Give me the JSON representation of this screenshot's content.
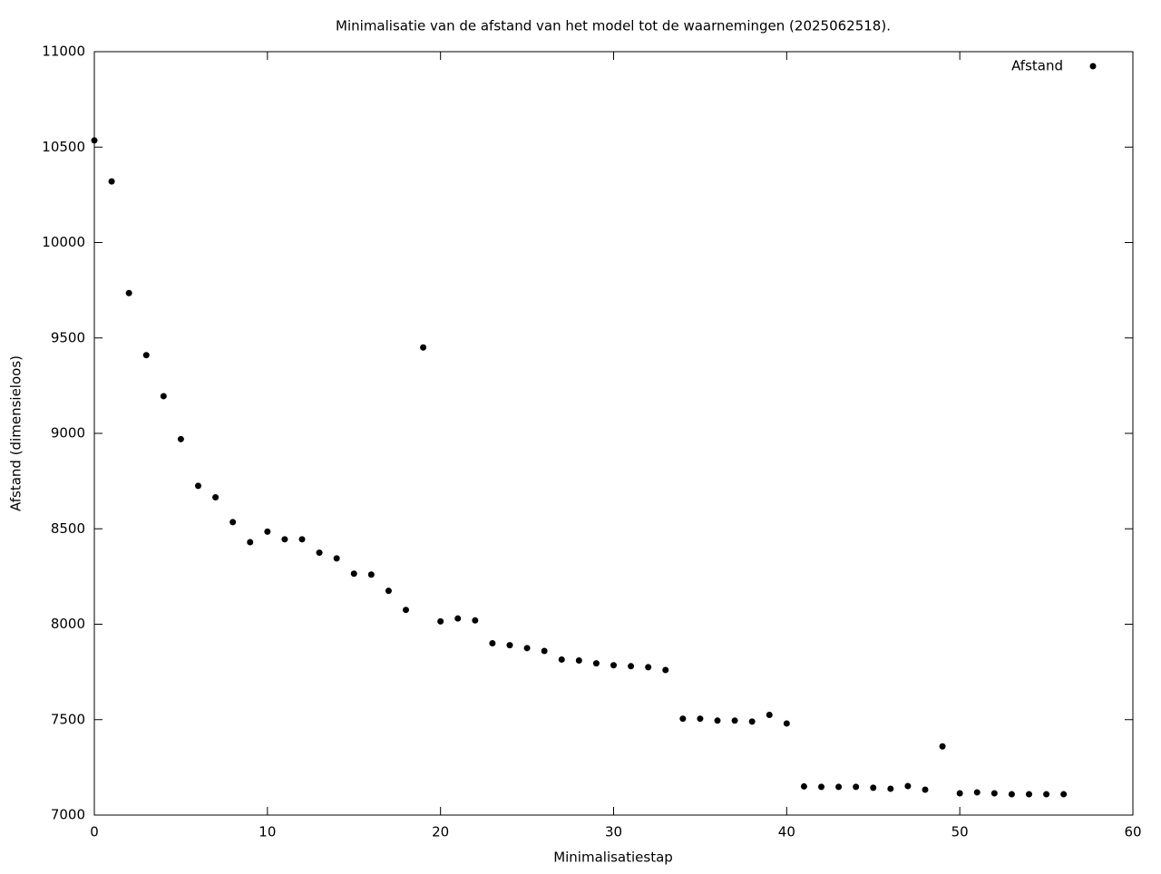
{
  "chart_data": {
    "type": "scatter",
    "title": "Minimalisatie van de afstand van het model tot de waarnemingen (2025062518).",
    "x_label": "Minimalisatiestap",
    "y_label": "Afstand (dimensieloos)",
    "legend": "top-right",
    "grid": false,
    "xlim": [
      0,
      60
    ],
    "xticks": [
      0,
      10,
      20,
      30,
      40,
      50,
      60
    ],
    "ylim": [
      7000,
      11000
    ],
    "yticks": [
      7000,
      7500,
      8000,
      8500,
      9000,
      9500,
      10000,
      10500,
      11000
    ],
    "series": [
      {
        "name": "Afstand",
        "color": "#000000",
        "x": [
          0,
          1,
          2,
          3,
          4,
          5,
          6,
          7,
          8,
          9,
          10,
          11,
          12,
          13,
          14,
          15,
          16,
          17,
          18,
          19,
          20,
          21,
          22,
          23,
          24,
          25,
          26,
          27,
          28,
          29,
          30,
          31,
          32,
          33,
          34,
          35,
          36,
          37,
          38,
          39,
          40,
          41,
          42,
          43,
          44,
          45,
          46,
          47,
          48,
          49,
          50,
          51,
          52,
          53,
          54,
          55,
          56
        ],
        "values": [
          10535,
          10320,
          9735,
          9410,
          9195,
          8970,
          8725,
          8665,
          8535,
          8430,
          8485,
          8445,
          8445,
          8375,
          8345,
          8265,
          8260,
          8175,
          8075,
          9450,
          8015,
          8030,
          8020,
          7900,
          7890,
          7875,
          7860,
          7815,
          7810,
          7795,
          7785,
          7780,
          7775,
          7760,
          7505,
          7505,
          7495,
          7495,
          7490,
          7525,
          7480,
          7150,
          7148,
          7148,
          7148,
          7143,
          7138,
          7152,
          7133,
          7360,
          7114,
          7119,
          7114,
          7109,
          7109,
          7109,
          7109
        ]
      }
    ]
  }
}
